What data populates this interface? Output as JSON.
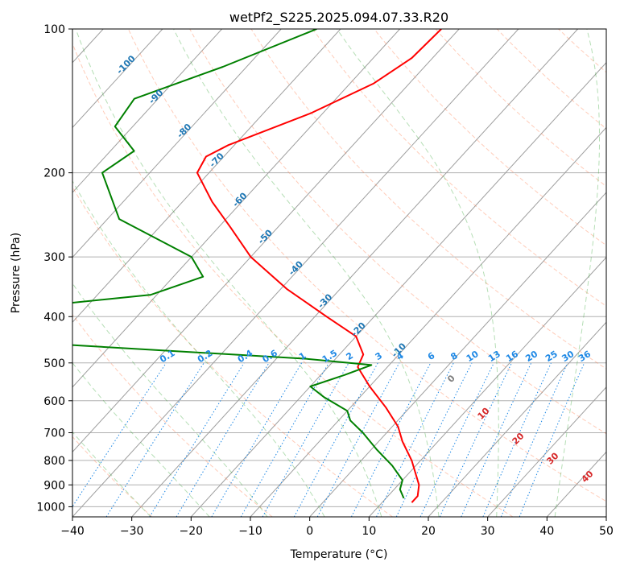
{
  "chart_data": {
    "type": "skew-t",
    "title": "wetPf2_S225.2025.094.07.33.R20",
    "xlabel": "Temperature (°C)",
    "ylabel": "Pressure (hPa)",
    "xlim": [
      -40,
      50
    ],
    "ylim": [
      1050,
      100
    ],
    "y_scale": "log",
    "grid": true,
    "x_ticks": [
      -40,
      -30,
      -20,
      -10,
      0,
      10,
      20,
      30,
      40,
      50
    ],
    "y_ticks": [
      100,
      200,
      300,
      400,
      500,
      600,
      700,
      800,
      900,
      1000
    ],
    "series": [
      {
        "name": "temperature",
        "color": "#ff0000",
        "points": [
          {
            "p": 100,
            "t": -53
          },
          {
            "p": 115,
            "t": -53.5
          },
          {
            "p": 130,
            "t": -56
          },
          {
            "p": 150,
            "t": -62
          },
          {
            "p": 175,
            "t": -71
          },
          {
            "p": 185,
            "t": -73
          },
          {
            "p": 200,
            "t": -72
          },
          {
            "p": 230,
            "t": -65
          },
          {
            "p": 260,
            "t": -58
          },
          {
            "p": 300,
            "t": -50
          },
          {
            "p": 350,
            "t": -39
          },
          {
            "p": 400,
            "t": -28
          },
          {
            "p": 440,
            "t": -20
          },
          {
            "p": 480,
            "t": -16
          },
          {
            "p": 510,
            "t": -15
          },
          {
            "p": 560,
            "t": -10
          },
          {
            "p": 620,
            "t": -4
          },
          {
            "p": 680,
            "t": 1
          },
          {
            "p": 730,
            "t": 4
          },
          {
            "p": 800,
            "t": 8.5
          },
          {
            "p": 900,
            "t": 13.5
          },
          {
            "p": 950,
            "t": 15
          },
          {
            "p": 980,
            "t": 15
          }
        ]
      },
      {
        "name": "dewpoint",
        "color": "#008000",
        "points": [
          {
            "p": 100,
            "t": -74
          },
          {
            "p": 120,
            "t": -84
          },
          {
            "p": 140,
            "t": -94
          },
          {
            "p": 160,
            "t": -93
          },
          {
            "p": 180,
            "t": -86
          },
          {
            "p": 200,
            "t": -88
          },
          {
            "p": 250,
            "t": -78
          },
          {
            "p": 300,
            "t": -60
          },
          {
            "p": 330,
            "t": -55
          },
          {
            "p": 360,
            "t": -61
          },
          {
            "p": 385,
            "t": -82
          },
          {
            "p": 395,
            "t": -94
          },
          {
            "p": 405,
            "t": -100
          },
          {
            "p": 430,
            "t": -101
          },
          {
            "p": 460,
            "t": -65
          },
          {
            "p": 490,
            "t": -25
          },
          {
            "p": 505,
            "t": -13
          },
          {
            "p": 530,
            "t": -16
          },
          {
            "p": 560,
            "t": -20
          },
          {
            "p": 590,
            "t": -16
          },
          {
            "p": 630,
            "t": -10
          },
          {
            "p": 660,
            "t": -8
          },
          {
            "p": 700,
            "t": -4
          },
          {
            "p": 760,
            "t": 1
          },
          {
            "p": 820,
            "t": 6
          },
          {
            "p": 880,
            "t": 10
          },
          {
            "p": 920,
            "t": 11
          },
          {
            "p": 960,
            "t": 13
          }
        ]
      }
    ],
    "isotherm_spacing": 10,
    "dry_adiabat_thetas_c": [
      -30,
      -10,
      10,
      30,
      50,
      70,
      90,
      110,
      130,
      150,
      170,
      190,
      210
    ],
    "moist_adiabat_thetaw_c": [
      -30,
      -20,
      -10,
      0,
      10,
      20,
      30,
      40,
      50
    ],
    "mixing_ratio_labels": [
      "0.1",
      "0.2",
      "0.4",
      "0.6",
      "1",
      "1.5",
      "2",
      "3",
      "4",
      "6",
      "8",
      "10",
      "13",
      "16",
      "20",
      "25",
      "30",
      "36"
    ],
    "mixing_ratio_values": [
      0.1,
      0.2,
      0.4,
      0.6,
      1,
      1.5,
      2,
      3,
      4,
      6,
      8,
      10,
      13,
      16,
      20,
      25,
      30,
      36
    ],
    "blue_annotations": [
      "-100",
      "-90",
      "-80",
      "-70",
      "-60",
      "-50",
      "-40",
      "-30",
      "-20",
      "-10"
    ],
    "red_annotations": [
      "10",
      "20",
      "30",
      "40"
    ],
    "gray_annotations": [
      "0"
    ],
    "colors": {
      "isotherm": "#9e9e9e",
      "grid": "#b0b0b0",
      "dry_adiabat": "#ff7f50",
      "moist_adiabat": "#2ca02c",
      "mixing_ratio": "#1e88e5",
      "blue_label": "#1f77b4",
      "red_label": "#d62728",
      "gray_label": "#7f7f7f",
      "title": "#000000"
    }
  }
}
